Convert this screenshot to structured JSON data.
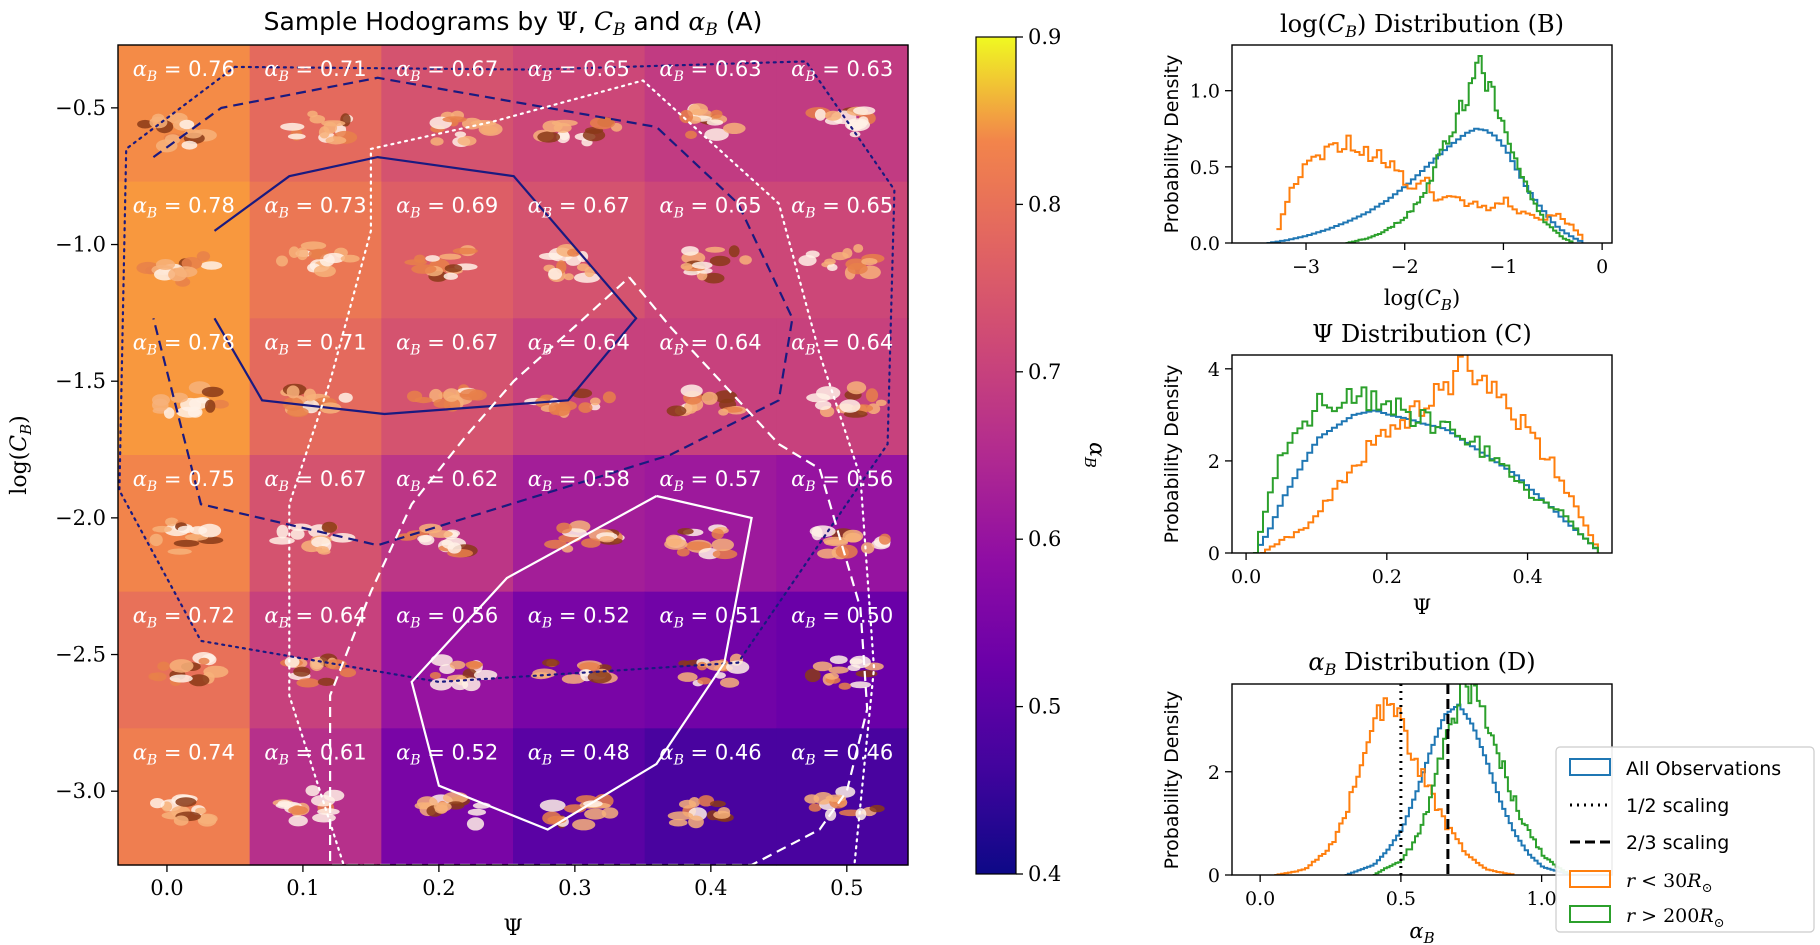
{
  "chart_data": [
    {
      "id": "A",
      "type": "heatmap",
      "title": "Sample Hodograms by Ψ, C_B and α_B (A)",
      "title_parts": {
        "a": "Sample Hodograms by ",
        "psi": "Ψ",
        "comma1": ", ",
        "c": "C",
        "c_sub": "B",
        "and": " and ",
        "alpha": "α",
        "alpha_sub": "B",
        "tail": " (A)"
      },
      "xlabel": "Ψ",
      "ylabel": "log(C_B)",
      "ylabel_parts": {
        "pre": "log(",
        "c": "C",
        "sub": "B",
        "post": ")"
      },
      "x_ticks": [
        "0.0",
        "0.1",
        "0.2",
        "0.3",
        "0.4",
        "0.5"
      ],
      "x_tick_values": [
        0.0,
        0.1,
        0.2,
        0.3,
        0.4,
        0.5
      ],
      "y_ticks": [
        "−0.5",
        "−1.0",
        "−1.5",
        "−2.0",
        "−2.5",
        "−3.0"
      ],
      "y_tick_values": [
        -0.5,
        -1.0,
        -1.5,
        -2.0,
        -2.5,
        -3.0
      ],
      "xlim": [
        -0.036,
        0.545
      ],
      "ylim": [
        -3.27,
        -0.27
      ],
      "cell_label_prefix": "α",
      "cell_label_sub": "B",
      "rows": [
        {
          "alpha": [
            "0.76",
            "0.71",
            "0.67",
            "0.65",
            "0.63",
            "0.63"
          ]
        },
        {
          "alpha": [
            "0.78",
            "0.73",
            "0.69",
            "0.67",
            "0.65",
            "0.65"
          ]
        },
        {
          "alpha": [
            "0.78",
            "0.71",
            "0.67",
            "0.64",
            "0.64",
            "0.64"
          ]
        },
        {
          "alpha": [
            "0.75",
            "0.67",
            "0.62",
            "0.58",
            "0.57",
            "0.56"
          ]
        },
        {
          "alpha": [
            "0.72",
            "0.64",
            "0.56",
            "0.52",
            "0.51",
            "0.50"
          ]
        },
        {
          "alpha": [
            "0.74",
            "0.61",
            "0.52",
            "0.48",
            "0.46",
            "0.46"
          ]
        }
      ],
      "colorbar": {
        "label": "α_B",
        "label_parts": {
          "alpha": "α",
          "sub": "B"
        },
        "range": [
          0.4,
          0.9
        ],
        "ticks": [
          "0.4",
          "0.5",
          "0.6",
          "0.7",
          "0.8",
          "0.9"
        ],
        "tick_values": [
          0.4,
          0.5,
          0.6,
          0.7,
          0.8,
          0.9
        ],
        "colormap": "plasma"
      },
      "contours": [
        {
          "name": "inner-navy",
          "color": "#1a1a80",
          "dash": "solid",
          "points": [
            [
              0.035,
              -0.95
            ],
            [
              0.09,
              -0.75
            ],
            [
              0.155,
              -0.68
            ],
            [
              0.255,
              -0.75
            ],
            [
              0.345,
              -1.27
            ],
            [
              0.295,
              -1.57
            ],
            [
              0.16,
              -1.62
            ],
            [
              0.07,
              -1.57
            ],
            [
              0.035,
              -1.27
            ]
          ]
        },
        {
          "name": "mid-navy",
          "color": "#1a1a80",
          "dash": "dashed",
          "points": [
            [
              -0.01,
              -0.68
            ],
            [
              0.04,
              -0.5
            ],
            [
              0.155,
              -0.39
            ],
            [
              0.36,
              -0.57
            ],
            [
              0.42,
              -0.85
            ],
            [
              0.46,
              -1.27
            ],
            [
              0.45,
              -1.57
            ],
            [
              0.37,
              -1.77
            ],
            [
              0.155,
              -2.1
            ],
            [
              0.025,
              -1.95
            ],
            [
              -0.01,
              -1.27
            ]
          ]
        },
        {
          "name": "outer-navy",
          "color": "#1a1a80",
          "dash": "dotted",
          "points": [
            [
              0.05,
              -0.35
            ],
            [
              0.27,
              -0.36
            ],
            [
              0.47,
              -0.33
            ],
            [
              0.535,
              -0.8
            ],
            [
              0.53,
              -1.73
            ],
            [
              0.42,
              -2.53
            ],
            [
              0.2,
              -2.6
            ],
            [
              0.025,
              -2.45
            ],
            [
              -0.035,
              -1.9
            ],
            [
              -0.03,
              -0.65
            ],
            [
              0.05,
              -0.35
            ]
          ]
        },
        {
          "name": "inner-white",
          "color": "#ffffff",
          "dash": "solid",
          "points": [
            [
              0.36,
              -1.92
            ],
            [
              0.43,
              -2.0
            ],
            [
              0.41,
              -2.53
            ],
            [
              0.36,
              -2.9
            ],
            [
              0.28,
              -3.14
            ],
            [
              0.2,
              -2.98
            ],
            [
              0.18,
              -2.6
            ],
            [
              0.25,
              -2.22
            ],
            [
              0.36,
              -1.92
            ]
          ]
        },
        {
          "name": "mid-white",
          "color": "#ffffff",
          "dash": "dashed",
          "points": [
            [
              0.34,
              -1.12
            ],
            [
              0.37,
              -1.3
            ],
            [
              0.45,
              -1.73
            ],
            [
              0.48,
              -1.82
            ],
            [
              0.51,
              -2.33
            ],
            [
              0.515,
              -2.7
            ],
            [
              0.5,
              -3.0
            ],
            [
              0.48,
              -3.14
            ],
            [
              0.43,
              -3.27
            ],
            [
              0.12,
              -3.27
            ],
            [
              0.12,
              -2.65
            ],
            [
              0.15,
              -2.27
            ],
            [
              0.18,
              -1.95
            ],
            [
              0.22,
              -1.7
            ],
            [
              0.255,
              -1.5
            ],
            [
              0.3,
              -1.3
            ],
            [
              0.34,
              -1.12
            ]
          ]
        },
        {
          "name": "outer-white",
          "color": "#ffffff",
          "dash": "dotted",
          "points": [
            [
              0.15,
              -0.65
            ],
            [
              0.24,
              -0.55
            ],
            [
              0.35,
              -0.4
            ],
            [
              0.45,
              -0.85
            ],
            [
              0.48,
              -1.4
            ],
            [
              0.51,
              -1.85
            ],
            [
              0.52,
              -2.55
            ],
            [
              0.505,
              -3.3
            ],
            [
              0.13,
              -3.27
            ],
            [
              0.09,
              -2.65
            ],
            [
              0.09,
              -1.95
            ],
            [
              0.12,
              -1.5
            ],
            [
              0.15,
              -0.95
            ],
            [
              0.15,
              -0.65
            ]
          ]
        }
      ]
    },
    {
      "id": "B",
      "type": "line",
      "title": "log(C_B) Distribution (B)",
      "title_parts": {
        "pre": "log(",
        "c": "C",
        "sub": "B",
        "post": ") Distribution (B)"
      },
      "xlabel": "log(C_B)",
      "xlabel_parts": {
        "pre": "log(",
        "c": "C",
        "sub": "B",
        "post": ")"
      },
      "ylabel": "Probability Density",
      "xlim": [
        -3.75,
        0.1
      ],
      "ylim": [
        0,
        1.3
      ],
      "x_ticks": [
        "−3",
        "−2",
        "−1",
        "0"
      ],
      "x_tick_values": [
        -3,
        -2,
        -1,
        0
      ],
      "y_ticks": [
        "0.0",
        "0.5",
        "1.0"
      ],
      "y_tick_values": [
        0.0,
        0.5,
        1.0
      ],
      "series": [
        {
          "name": "All Observations",
          "color": "#1f77b4",
          "x": [
            -3.4,
            -3.2,
            -3.0,
            -2.8,
            -2.6,
            -2.4,
            -2.2,
            -2.0,
            -1.8,
            -1.6,
            -1.4,
            -1.3,
            -1.2,
            -1.1,
            -1.0,
            -0.9,
            -0.8,
            -0.7,
            -0.6,
            -0.5,
            -0.4,
            -0.3,
            -0.2
          ],
          "values": [
            0.0,
            0.02,
            0.05,
            0.09,
            0.14,
            0.2,
            0.28,
            0.38,
            0.5,
            0.62,
            0.72,
            0.75,
            0.74,
            0.7,
            0.62,
            0.5,
            0.38,
            0.28,
            0.2,
            0.12,
            0.07,
            0.03,
            0.0
          ]
        },
        {
          "name": "r < 30R⊙",
          "color": "#ff7f0e",
          "x": [
            -3.3,
            -3.2,
            -3.1,
            -3.0,
            -2.9,
            -2.8,
            -2.7,
            -2.6,
            -2.5,
            -2.4,
            -2.3,
            -2.2,
            -2.1,
            -2.0,
            -1.9,
            -1.8,
            -1.7,
            -1.6,
            -1.5,
            -1.4,
            -1.3,
            -1.2,
            -1.1,
            -1.0,
            -0.9,
            -0.8,
            -0.7,
            -0.6,
            -0.5,
            -0.4,
            -0.3,
            -0.2
          ],
          "values": [
            0.1,
            0.3,
            0.45,
            0.5,
            0.55,
            0.6,
            0.65,
            0.68,
            0.62,
            0.58,
            0.6,
            0.55,
            0.48,
            0.38,
            0.35,
            0.4,
            0.3,
            0.28,
            0.3,
            0.25,
            0.28,
            0.22,
            0.25,
            0.3,
            0.2,
            0.22,
            0.18,
            0.15,
            0.2,
            0.15,
            0.1,
            0.02
          ]
        },
        {
          "name": "r > 200R⊙",
          "color": "#2ca02c",
          "x": [
            -2.6,
            -2.4,
            -2.2,
            -2.0,
            -1.8,
            -1.7,
            -1.6,
            -1.5,
            -1.4,
            -1.3,
            -1.25,
            -1.2,
            -1.1,
            -1.0,
            -0.9,
            -0.8,
            -0.7,
            -0.6,
            -0.5,
            -0.4,
            -0.3
          ],
          "values": [
            0.0,
            0.03,
            0.08,
            0.18,
            0.35,
            0.5,
            0.65,
            0.8,
            0.95,
            1.05,
            1.22,
            1.1,
            0.95,
            0.75,
            0.55,
            0.38,
            0.25,
            0.15,
            0.08,
            0.03,
            0.0
          ]
        }
      ]
    },
    {
      "id": "C",
      "type": "line",
      "title": "Ψ Distribution (C)",
      "title_parts": {
        "psi": "Ψ",
        "post": " Distribution (C)"
      },
      "xlabel": "Ψ",
      "ylabel": "Probability Density",
      "xlim": [
        -0.02,
        0.52
      ],
      "ylim": [
        0,
        4.3
      ],
      "x_ticks": [
        "0.0",
        "0.2",
        "0.4"
      ],
      "x_tick_values": [
        0.0,
        0.2,
        0.4
      ],
      "y_ticks": [
        "0",
        "2",
        "4"
      ],
      "y_tick_values": [
        0,
        2,
        4
      ],
      "series": [
        {
          "name": "All Observations",
          "color": "#1f77b4",
          "x": [
            0.01,
            0.03,
            0.05,
            0.08,
            0.1,
            0.13,
            0.15,
            0.18,
            0.2,
            0.23,
            0.25,
            0.28,
            0.3,
            0.33,
            0.35,
            0.38,
            0.4,
            0.43,
            0.45,
            0.48,
            0.5
          ],
          "values": [
            0.0,
            0.5,
            1.2,
            2.0,
            2.5,
            2.8,
            3.0,
            3.1,
            3.0,
            2.9,
            2.8,
            2.7,
            2.5,
            2.2,
            2.0,
            1.7,
            1.4,
            1.0,
            0.7,
            0.3,
            0.0
          ]
        },
        {
          "name": "r < 30R⊙",
          "color": "#ff7f0e",
          "x": [
            0.02,
            0.05,
            0.08,
            0.1,
            0.13,
            0.15,
            0.18,
            0.2,
            0.23,
            0.25,
            0.28,
            0.3,
            0.32,
            0.35,
            0.38,
            0.4,
            0.42,
            0.45,
            0.47,
            0.5
          ],
          "values": [
            0.0,
            0.3,
            0.5,
            0.9,
            1.5,
            1.9,
            2.4,
            2.8,
            3.0,
            3.3,
            3.5,
            4.2,
            3.8,
            3.4,
            3.0,
            2.6,
            2.2,
            1.5,
            0.8,
            0.0
          ]
        },
        {
          "name": "r > 200R⊙",
          "color": "#2ca02c",
          "x": [
            0.01,
            0.03,
            0.05,
            0.07,
            0.1,
            0.12,
            0.15,
            0.18,
            0.2,
            0.23,
            0.25,
            0.28,
            0.3,
            0.33,
            0.35,
            0.38,
            0.4,
            0.43,
            0.45,
            0.48,
            0.5
          ],
          "values": [
            0.0,
            1.3,
            2.2,
            2.8,
            3.2,
            3.3,
            3.4,
            3.3,
            3.2,
            3.0,
            2.9,
            2.7,
            2.5,
            2.3,
            2.0,
            1.6,
            1.3,
            1.0,
            0.8,
            0.3,
            0.0
          ]
        }
      ]
    },
    {
      "id": "D",
      "type": "line",
      "title": "α_B Distribution (D)",
      "title_parts": {
        "alpha": "α",
        "sub": "B",
        "post": " Distribution (D)"
      },
      "xlabel": "α_B",
      "xlabel_parts": {
        "alpha": "α",
        "sub": "B"
      },
      "ylabel": "Probability Density",
      "xlim": [
        -0.1,
        1.25
      ],
      "ylim": [
        0,
        3.7
      ],
      "x_ticks": [
        "0.0",
        "0.5",
        "1.0"
      ],
      "x_tick_values": [
        0.0,
        0.5,
        1.0
      ],
      "y_ticks": [
        "0",
        "2"
      ],
      "y_tick_values": [
        0,
        2
      ],
      "vlines": [
        {
          "x": 0.5,
          "label": "1/2 scaling",
          "style": "dotted",
          "color": "#000000"
        },
        {
          "x": 0.667,
          "label": "2/3 scaling",
          "style": "dashed",
          "color": "#000000"
        }
      ],
      "series": [
        {
          "name": "All Observations",
          "color": "#1f77b4",
          "x": [
            0.3,
            0.4,
            0.45,
            0.5,
            0.55,
            0.6,
            0.65,
            0.7,
            0.75,
            0.8,
            0.85,
            0.9,
            0.95,
            1.0,
            1.1
          ],
          "values": [
            0.0,
            0.2,
            0.5,
            0.9,
            1.6,
            2.4,
            3.1,
            3.3,
            2.9,
            2.2,
            1.4,
            0.8,
            0.4,
            0.15,
            0.0
          ]
        },
        {
          "name": "r < 30R⊙",
          "color": "#ff7f0e",
          "x": [
            0.05,
            0.15,
            0.2,
            0.25,
            0.3,
            0.35,
            0.4,
            0.45,
            0.48,
            0.5,
            0.55,
            0.6,
            0.65,
            0.7,
            0.75,
            0.8,
            0.9
          ],
          "values": [
            0.0,
            0.1,
            0.3,
            0.6,
            1.2,
            2.2,
            3.0,
            3.5,
            3.2,
            2.8,
            2.2,
            1.6,
            1.0,
            0.6,
            0.3,
            0.1,
            0.0
          ]
        },
        {
          "name": "r > 200R⊙",
          "color": "#2ca02c",
          "x": [
            0.4,
            0.5,
            0.55,
            0.6,
            0.65,
            0.7,
            0.73,
            0.75,
            0.8,
            0.85,
            0.9,
            0.95,
            1.0,
            1.05,
            1.1
          ],
          "values": [
            0.0,
            0.3,
            0.7,
            1.5,
            2.5,
            3.4,
            3.7,
            3.5,
            2.9,
            2.2,
            1.4,
            0.8,
            0.4,
            0.15,
            0.0
          ]
        }
      ]
    }
  ],
  "legend": {
    "placement": "bottom-right",
    "items": [
      {
        "label": "All Observations",
        "type": "box",
        "color": "#1f77b4"
      },
      {
        "label": "1/2 scaling",
        "type": "dotted",
        "color": "#000000"
      },
      {
        "label": "2/3 scaling",
        "type": "dashed",
        "color": "#000000"
      },
      {
        "label_parts": {
          "r": "r",
          "lt": " < 30",
          "R": "R",
          "sun": "⊙"
        },
        "label": "r < 30R⊙",
        "type": "box",
        "color": "#ff7f0e"
      },
      {
        "label_parts": {
          "r": "r",
          "lt": " > 200",
          "R": "R",
          "sun": "⊙"
        },
        "label": "r > 200R⊙",
        "type": "box",
        "color": "#2ca02c"
      }
    ]
  }
}
